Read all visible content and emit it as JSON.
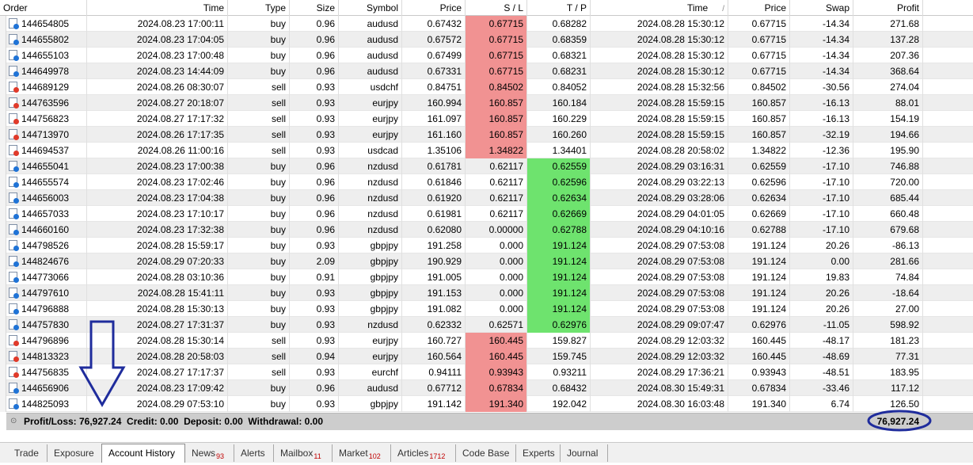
{
  "columns": [
    "Order",
    "Time",
    "Type",
    "Size",
    "Symbol",
    "Price",
    "S / L",
    "T / P",
    "Time",
    "Price",
    "Swap",
    "Profit"
  ],
  "sort_indicator": "/",
  "rows": [
    {
      "order": "144654805",
      "open_time": "2024.08.23 17:00:11",
      "type": "buy",
      "size": "0.96",
      "symbol": "audusd",
      "open_price": "0.67432",
      "sl": "0.67715",
      "tp": "0.68282",
      "close_time": "2024.08.28 15:30:12",
      "close_price": "0.67715",
      "swap": "-14.34",
      "profit": "271.68",
      "sl_hl": "red",
      "tp_hl": ""
    },
    {
      "order": "144655802",
      "open_time": "2024.08.23 17:04:05",
      "type": "buy",
      "size": "0.96",
      "symbol": "audusd",
      "open_price": "0.67572",
      "sl": "0.67715",
      "tp": "0.68359",
      "close_time": "2024.08.28 15:30:12",
      "close_price": "0.67715",
      "swap": "-14.34",
      "profit": "137.28",
      "sl_hl": "red",
      "tp_hl": ""
    },
    {
      "order": "144655103",
      "open_time": "2024.08.23 17:00:48",
      "type": "buy",
      "size": "0.96",
      "symbol": "audusd",
      "open_price": "0.67499",
      "sl": "0.67715",
      "tp": "0.68321",
      "close_time": "2024.08.28 15:30:12",
      "close_price": "0.67715",
      "swap": "-14.34",
      "profit": "207.36",
      "sl_hl": "red",
      "tp_hl": ""
    },
    {
      "order": "144649978",
      "open_time": "2024.08.23 14:44:09",
      "type": "buy",
      "size": "0.96",
      "symbol": "audusd",
      "open_price": "0.67331",
      "sl": "0.67715",
      "tp": "0.68231",
      "close_time": "2024.08.28 15:30:12",
      "close_price": "0.67715",
      "swap": "-14.34",
      "profit": "368.64",
      "sl_hl": "red",
      "tp_hl": ""
    },
    {
      "order": "144689129",
      "open_time": "2024.08.26 08:30:07",
      "type": "sell",
      "size": "0.93",
      "symbol": "usdchf",
      "open_price": "0.84751",
      "sl": "0.84502",
      "tp": "0.84052",
      "close_time": "2024.08.28 15:32:56",
      "close_price": "0.84502",
      "swap": "-30.56",
      "profit": "274.04",
      "sl_hl": "red",
      "tp_hl": ""
    },
    {
      "order": "144763596",
      "open_time": "2024.08.27 20:18:07",
      "type": "sell",
      "size": "0.93",
      "symbol": "eurjpy",
      "open_price": "160.994",
      "sl": "160.857",
      "tp": "160.184",
      "close_time": "2024.08.28 15:59:15",
      "close_price": "160.857",
      "swap": "-16.13",
      "profit": "88.01",
      "sl_hl": "red",
      "tp_hl": ""
    },
    {
      "order": "144756823",
      "open_time": "2024.08.27 17:17:32",
      "type": "sell",
      "size": "0.93",
      "symbol": "eurjpy",
      "open_price": "161.097",
      "sl": "160.857",
      "tp": "160.229",
      "close_time": "2024.08.28 15:59:15",
      "close_price": "160.857",
      "swap": "-16.13",
      "profit": "154.19",
      "sl_hl": "red",
      "tp_hl": ""
    },
    {
      "order": "144713970",
      "open_time": "2024.08.26 17:17:35",
      "type": "sell",
      "size": "0.93",
      "symbol": "eurjpy",
      "open_price": "161.160",
      "sl": "160.857",
      "tp": "160.260",
      "close_time": "2024.08.28 15:59:15",
      "close_price": "160.857",
      "swap": "-32.19",
      "profit": "194.66",
      "sl_hl": "red",
      "tp_hl": ""
    },
    {
      "order": "144694537",
      "open_time": "2024.08.26 11:00:16",
      "type": "sell",
      "size": "0.93",
      "symbol": "usdcad",
      "open_price": "1.35106",
      "sl": "1.34822",
      "tp": "1.34401",
      "close_time": "2024.08.28 20:58:02",
      "close_price": "1.34822",
      "swap": "-12.36",
      "profit": "195.90",
      "sl_hl": "red",
      "tp_hl": ""
    },
    {
      "order": "144655041",
      "open_time": "2024.08.23 17:00:38",
      "type": "buy",
      "size": "0.96",
      "symbol": "nzdusd",
      "open_price": "0.61781",
      "sl": "0.62117",
      "tp": "0.62559",
      "close_time": "2024.08.29 03:16:31",
      "close_price": "0.62559",
      "swap": "-17.10",
      "profit": "746.88",
      "sl_hl": "",
      "tp_hl": "green"
    },
    {
      "order": "144655574",
      "open_time": "2024.08.23 17:02:46",
      "type": "buy",
      "size": "0.96",
      "symbol": "nzdusd",
      "open_price": "0.61846",
      "sl": "0.62117",
      "tp": "0.62596",
      "close_time": "2024.08.29 03:22:13",
      "close_price": "0.62596",
      "swap": "-17.10",
      "profit": "720.00",
      "sl_hl": "",
      "tp_hl": "green"
    },
    {
      "order": "144656003",
      "open_time": "2024.08.23 17:04:38",
      "type": "buy",
      "size": "0.96",
      "symbol": "nzdusd",
      "open_price": "0.61920",
      "sl": "0.62117",
      "tp": "0.62634",
      "close_time": "2024.08.29 03:28:06",
      "close_price": "0.62634",
      "swap": "-17.10",
      "profit": "685.44",
      "sl_hl": "",
      "tp_hl": "green"
    },
    {
      "order": "144657033",
      "open_time": "2024.08.23 17:10:17",
      "type": "buy",
      "size": "0.96",
      "symbol": "nzdusd",
      "open_price": "0.61981",
      "sl": "0.62117",
      "tp": "0.62669",
      "close_time": "2024.08.29 04:01:05",
      "close_price": "0.62669",
      "swap": "-17.10",
      "profit": "660.48",
      "sl_hl": "",
      "tp_hl": "green"
    },
    {
      "order": "144660160",
      "open_time": "2024.08.23 17:32:38",
      "type": "buy",
      "size": "0.96",
      "symbol": "nzdusd",
      "open_price": "0.62080",
      "sl": "0.00000",
      "tp": "0.62788",
      "close_time": "2024.08.29 04:10:16",
      "close_price": "0.62788",
      "swap": "-17.10",
      "profit": "679.68",
      "sl_hl": "",
      "tp_hl": "green"
    },
    {
      "order": "144798526",
      "open_time": "2024.08.28 15:59:17",
      "type": "buy",
      "size": "0.93",
      "symbol": "gbpjpy",
      "open_price": "191.258",
      "sl": "0.000",
      "tp": "191.124",
      "close_time": "2024.08.29 07:53:08",
      "close_price": "191.124",
      "swap": "20.26",
      "profit": "-86.13",
      "sl_hl": "",
      "tp_hl": "green"
    },
    {
      "order": "144824676",
      "open_time": "2024.08.29 07:20:33",
      "type": "buy",
      "size": "2.09",
      "symbol": "gbpjpy",
      "open_price": "190.929",
      "sl": "0.000",
      "tp": "191.124",
      "close_time": "2024.08.29 07:53:08",
      "close_price": "191.124",
      "swap": "0.00",
      "profit": "281.66",
      "sl_hl": "",
      "tp_hl": "green"
    },
    {
      "order": "144773066",
      "open_time": "2024.08.28 03:10:36",
      "type": "buy",
      "size": "0.91",
      "symbol": "gbpjpy",
      "open_price": "191.005",
      "sl": "0.000",
      "tp": "191.124",
      "close_time": "2024.08.29 07:53:08",
      "close_price": "191.124",
      "swap": "19.83",
      "profit": "74.84",
      "sl_hl": "",
      "tp_hl": "green"
    },
    {
      "order": "144797610",
      "open_time": "2024.08.28 15:41:11",
      "type": "buy",
      "size": "0.93",
      "symbol": "gbpjpy",
      "open_price": "191.153",
      "sl": "0.000",
      "tp": "191.124",
      "close_time": "2024.08.29 07:53:08",
      "close_price": "191.124",
      "swap": "20.26",
      "profit": "-18.64",
      "sl_hl": "",
      "tp_hl": "green"
    },
    {
      "order": "144796888",
      "open_time": "2024.08.28 15:30:13",
      "type": "buy",
      "size": "0.93",
      "symbol": "gbpjpy",
      "open_price": "191.082",
      "sl": "0.000",
      "tp": "191.124",
      "close_time": "2024.08.29 07:53:08",
      "close_price": "191.124",
      "swap": "20.26",
      "profit": "27.00",
      "sl_hl": "",
      "tp_hl": "green"
    },
    {
      "order": "144757830",
      "open_time": "2024.08.27 17:31:37",
      "type": "buy",
      "size": "0.93",
      "symbol": "nzdusd",
      "open_price": "0.62332",
      "sl": "0.62571",
      "tp": "0.62976",
      "close_time": "2024.08.29 09:07:47",
      "close_price": "0.62976",
      "swap": "-11.05",
      "profit": "598.92",
      "sl_hl": "",
      "tp_hl": "green"
    },
    {
      "order": "144796896",
      "open_time": "2024.08.28 15:30:14",
      "type": "sell",
      "size": "0.93",
      "symbol": "eurjpy",
      "open_price": "160.727",
      "sl": "160.445",
      "tp": "159.827",
      "close_time": "2024.08.29 12:03:32",
      "close_price": "160.445",
      "swap": "-48.17",
      "profit": "181.23",
      "sl_hl": "red",
      "tp_hl": ""
    },
    {
      "order": "144813323",
      "open_time": "2024.08.28 20:58:03",
      "type": "sell",
      "size": "0.94",
      "symbol": "eurjpy",
      "open_price": "160.564",
      "sl": "160.445",
      "tp": "159.745",
      "close_time": "2024.08.29 12:03:32",
      "close_price": "160.445",
      "swap": "-48.69",
      "profit": "77.31",
      "sl_hl": "red",
      "tp_hl": ""
    },
    {
      "order": "144756835",
      "open_time": "2024.08.27 17:17:37",
      "type": "sell",
      "size": "0.93",
      "symbol": "eurchf",
      "open_price": "0.94111",
      "sl": "0.93943",
      "tp": "0.93211",
      "close_time": "2024.08.29 17:36:21",
      "close_price": "0.93943",
      "swap": "-48.51",
      "profit": "183.95",
      "sl_hl": "red",
      "tp_hl": ""
    },
    {
      "order": "144656906",
      "open_time": "2024.08.23 17:09:42",
      "type": "buy",
      "size": "0.96",
      "symbol": "audusd",
      "open_price": "0.67712",
      "sl": "0.67834",
      "tp": "0.68432",
      "close_time": "2024.08.30 15:49:31",
      "close_price": "0.67834",
      "swap": "-33.46",
      "profit": "117.12",
      "sl_hl": "red",
      "tp_hl": ""
    },
    {
      "order": "144825093",
      "open_time": "2024.08.29 07:53:10",
      "type": "buy",
      "size": "0.93",
      "symbol": "gbpjpy",
      "open_price": "191.142",
      "sl": "191.340",
      "tp": "192.042",
      "close_time": "2024.08.30 16:03:48",
      "close_price": "191.340",
      "swap": "6.74",
      "profit": "126.50",
      "sl_hl": "red",
      "tp_hl": ""
    }
  ],
  "summary": {
    "text": "Profit/Loss: 76,927.24  Credit: 0.00  Deposit: 0.00  Withdrawal: 0.00",
    "total_profit": "76,927.24"
  },
  "tabs": [
    {
      "label": "Trade",
      "badge": ""
    },
    {
      "label": "Exposure",
      "badge": ""
    },
    {
      "label": "Account History",
      "badge": "",
      "active": true
    },
    {
      "label": "News",
      "badge": "93"
    },
    {
      "label": "Alerts",
      "badge": ""
    },
    {
      "label": "Mailbox",
      "badge": "11"
    },
    {
      "label": "Market",
      "badge": "102"
    },
    {
      "label": "Articles",
      "badge": "1712"
    },
    {
      "label": "Code Base",
      "badge": ""
    },
    {
      "label": "Experts",
      "badge": ""
    },
    {
      "label": "Journal",
      "badge": ""
    }
  ],
  "colors": {
    "sl_highlight": "#f19292",
    "tp_highlight": "#6ee36e",
    "annotation": "#1f2c9c",
    "summary_bg": "#cdcdcd"
  }
}
